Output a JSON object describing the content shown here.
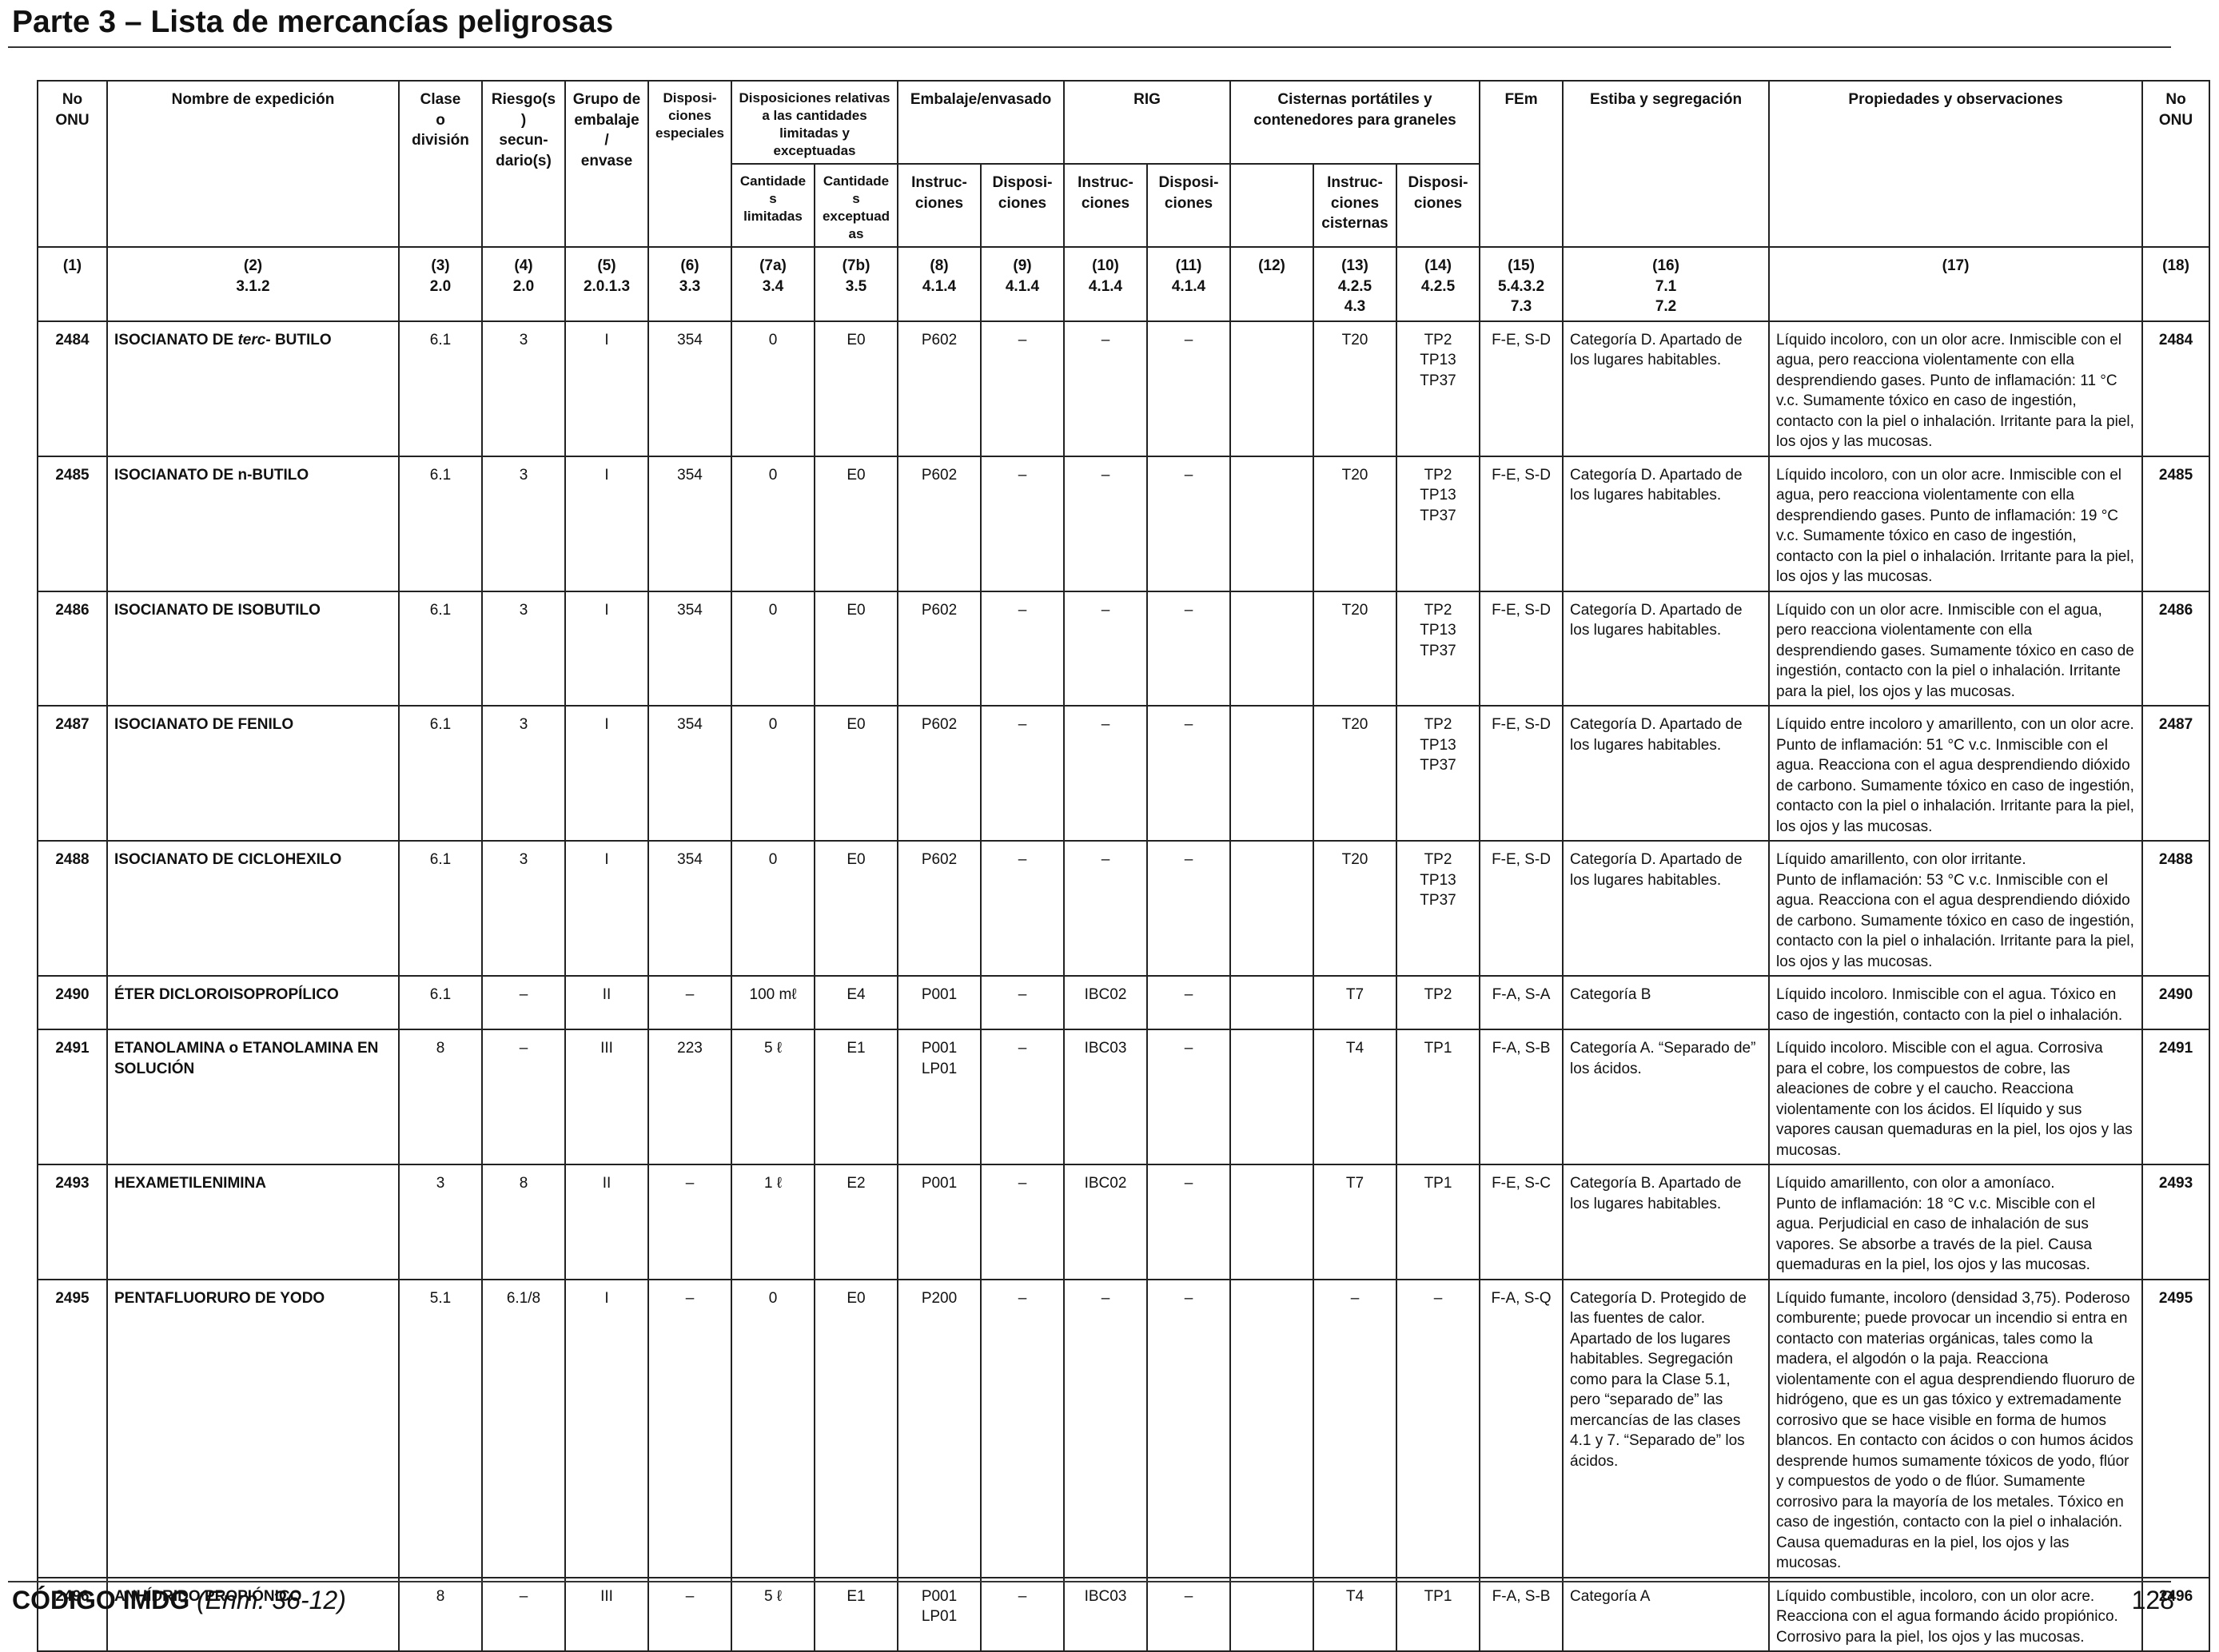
{
  "page_title": "Parte 3 – Lista de mercancías peligrosas",
  "header": {
    "un_no": "No\nONU",
    "name": "Nombre de expedición",
    "class": "Clase\no\ndivisión",
    "subrisk": "Riesgo(s)\nsecun-\ndario(s)",
    "pg": "Grupo de\nembalaje/\nenvase",
    "sp": "Disposi-\nciones\nespeciales",
    "limited_group": "Disposiciones relativas\na las cantidades\nlimitadas y exceptuadas",
    "limited_qty": "Cantidade\ns limitadas",
    "excepted_qty": "Cantidades\nexceptuadas",
    "packing_group": "Embalaje/envasado",
    "packing_instr": "Instruc-\nciones",
    "packing_prov": "Disposi-\nciones",
    "ibc_group": "RIG",
    "ibc_instr": "Instruc-\nciones",
    "ibc_prov": "Disposi-\nciones",
    "tank_group": "Cisternas portátiles y\ncontenedores para graneles",
    "tank_instr": "Instruc-\nciones\ncisternas",
    "tank_prov": "Disposi-\nciones",
    "ems": "FEm",
    "stowage": "Estiba y segregación",
    "properties": "Propiedades y observaciones",
    "un_no_right": "No\nONU"
  },
  "col_numbers": [
    "(1)",
    "(2)\n3.1.2",
    "(3)\n2.0",
    "(4)\n2.0",
    "(5)\n2.0.1.3",
    "(6)\n3.3",
    "(7a)\n3.4",
    "(7b)\n3.5",
    "(8)\n4.1.4",
    "(9)\n4.1.4",
    "(10)\n4.1.4",
    "(11)\n4.1.4",
    "(12)",
    "(13)\n4.2.5\n4.3",
    "(14)\n4.2.5",
    "(15)\n5.4.3.2\n7.3",
    "(16)\n7.1\n7.2",
    "(17)",
    "(18)"
  ],
  "rows": [
    {
      "un": "2484",
      "name_pre": "ISOCIANATO DE ",
      "name_it": "terc",
      "name_post": "- BUTILO",
      "cls": "6.1",
      "sub": "3",
      "pg": "I",
      "sp": "354",
      "lq": "0",
      "eq": "E0",
      "pi": "P602",
      "pp": "–",
      "ibc": "–",
      "ibcp": "–",
      "c12": "",
      "tank": "T20",
      "tp": "TP2\nTP13\nTP37",
      "ems": "F-E, S-D",
      "stow": "Categoría D. Apartado de los lugares habitables.",
      "props": "Líquido incoloro, con un olor acre. Inmiscible con el agua, pero reacciona violentamente con ella desprendiendo gases. Punto de inflamación: 11 °C v.c. Sumamente tóxico en caso de ingestión, contacto con la piel o inhalación. Irritante para la piel, los ojos y las mucosas."
    },
    {
      "un": "2485",
      "name_pre": "ISOCIANATO DE n-BUTILO",
      "name_it": "",
      "name_post": "",
      "cls": "6.1",
      "sub": "3",
      "pg": "I",
      "sp": "354",
      "lq": "0",
      "eq": "E0",
      "pi": "P602",
      "pp": "–",
      "ibc": "–",
      "ibcp": "–",
      "c12": "",
      "tank": "T20",
      "tp": "TP2\nTP13\nTP37",
      "ems": "F-E, S-D",
      "stow": "Categoría D. Apartado de los lugares habitables.",
      "props": "Líquido incoloro, con un olor acre. Inmiscible con el agua, pero reacciona violentamente con ella desprendiendo gases. Punto de inflamación: 19 °C v.c. Sumamente tóxico en caso de ingestión, contacto con la piel o inhalación. Irritante para la piel, los ojos y las mucosas."
    },
    {
      "un": "2486",
      "name_pre": "ISOCIANATO DE ISOBUTILO",
      "name_it": "",
      "name_post": "",
      "cls": "6.1",
      "sub": "3",
      "pg": "I",
      "sp": "354",
      "lq": "0",
      "eq": "E0",
      "pi": "P602",
      "pp": "–",
      "ibc": "–",
      "ibcp": "–",
      "c12": "",
      "tank": "T20",
      "tp": "TP2\nTP13\nTP37",
      "ems": "F-E, S-D",
      "stow": "Categoría D. Apartado de los lugares habitables.",
      "props": "Líquido con un olor acre. Inmiscible con el agua, pero reacciona violentamente con ella desprendiendo gases. Sumamente tóxico en caso de ingestión, contacto con la piel o inhalación. Irritante para la piel, los ojos y las mucosas."
    },
    {
      "un": "2487",
      "name_pre": "ISOCIANATO DE FENILO",
      "name_it": "",
      "name_post": "",
      "cls": "6.1",
      "sub": "3",
      "pg": "I",
      "sp": "354",
      "lq": "0",
      "eq": "E0",
      "pi": "P602",
      "pp": "–",
      "ibc": "–",
      "ibcp": "–",
      "c12": "",
      "tank": "T20",
      "tp": "TP2\nTP13\nTP37",
      "ems": "F-E, S-D",
      "stow": "Categoría D. Apartado de los lugares habitables.",
      "props": "Líquido entre incoloro y amarillento, con un olor acre. Punto de inflamación: 51 °C v.c. Inmiscible con el agua. Reacciona con el agua desprendiendo dióxido de carbono. Sumamente tóxico en caso de ingestión, contacto con la piel o inhalación. Irritante para la piel, los ojos y las mucosas."
    },
    {
      "un": "2488",
      "name_pre": "ISOCIANATO DE CICLOHEXILO",
      "name_it": "",
      "name_post": "",
      "cls": "6.1",
      "sub": "3",
      "pg": "I",
      "sp": "354",
      "lq": "0",
      "eq": "E0",
      "pi": "P602",
      "pp": "–",
      "ibc": "–",
      "ibcp": "–",
      "c12": "",
      "tank": "T20",
      "tp": "TP2\nTP13\nTP37",
      "ems": "F-E, S-D",
      "stow": "Categoría D. Apartado de los lugares habitables.",
      "props": "Líquido amarillento, con olor irritante.\nPunto de inflamación: 53 °C v.c. Inmiscible con el agua. Reacciona con el agua desprendiendo dióxido de carbono. Sumamente tóxico en caso de ingestión, contacto con la piel o inhalación. Irritante para la piel, los ojos y las mucosas."
    },
    {
      "un": "2490",
      "name_pre": "ÉTER DICLOROISOPROPÍLICO",
      "name_it": "",
      "name_post": "",
      "cls": "6.1",
      "sub": "–",
      "pg": "II",
      "sp": "–",
      "lq": "100 mℓ",
      "eq": "E4",
      "pi": "P001",
      "pp": "–",
      "ibc": "IBC02",
      "ibcp": "–",
      "c12": "",
      "tank": "T7",
      "tp": "TP2",
      "ems": "F-A, S-A",
      "stow": "Categoría B",
      "props": "Líquido incoloro. Inmiscible con el agua. Tóxico en caso de ingestión, contacto con la piel o inhalación."
    },
    {
      "un": "2491",
      "name_pre": "ETANOLAMINA o ETANOLAMINA EN SOLUCIÓN",
      "name_it": "",
      "name_post": "",
      "cls": "8",
      "sub": "–",
      "pg": "III",
      "sp": "223",
      "lq": "5 ℓ",
      "eq": "E1",
      "pi": "P001\nLP01",
      "pp": "–",
      "ibc": "IBC03",
      "ibcp": "–",
      "c12": "",
      "tank": "T4",
      "tp": "TP1",
      "ems": "F-A, S-B",
      "stow": "Categoría A. “Separado de” los ácidos.",
      "props": "Líquido incoloro. Miscible con el agua. Corrosiva para el cobre, los compuestos de cobre, las aleaciones de cobre y el caucho. Reacciona violentamente con los ácidos. El líquido y sus vapores causan quemaduras en la piel, los ojos y las mucosas."
    },
    {
      "un": "2493",
      "name_pre": "HEXAMETILENIMINA",
      "name_it": "",
      "name_post": "",
      "cls": "3",
      "sub": "8",
      "pg": "II",
      "sp": "–",
      "lq": "1 ℓ",
      "eq": "E2",
      "pi": "P001",
      "pp": "–",
      "ibc": "IBC02",
      "ibcp": "–",
      "c12": "",
      "tank": "T7",
      "tp": "TP1",
      "ems": "F-E, S-C",
      "stow": "Categoría B. Apartado de los lugares habitables.",
      "props": "Líquido amarillento, con olor a amoníaco.\nPunto de inflamación: 18 °C v.c. Miscible con el agua. Perjudicial en caso de inhalación de sus vapores. Se absorbe a través de la piel. Causa quemaduras en la piel, los ojos y las mucosas."
    },
    {
      "un": "2495",
      "name_pre": "PENTAFLUORURO DE YODO",
      "name_it": "",
      "name_post": "",
      "cls": "5.1",
      "sub": "6.1/8",
      "pg": "I",
      "sp": "–",
      "lq": "0",
      "eq": "E0",
      "pi": "P200",
      "pp": "–",
      "ibc": "–",
      "ibcp": "–",
      "c12": "",
      "tank": "–",
      "tp": "–",
      "ems": "F-A, S-Q",
      "stow": "Categoría D. Protegido de las fuentes de calor. Apartado de los lugares habitables. Segregación como para la Clase 5.1, pero “separado de” las mercancías de las clases 4.1 y 7. “Separado de” los ácidos.",
      "props": "Líquido fumante, incoloro (densidad 3,75). Poderoso comburente; puede provocar un incendio si entra en contacto con materias orgánicas, tales como la madera, el algodón o la paja. Reacciona violentamente con el agua desprendiendo fluoruro de hidrógeno, que es un gas tóxico y extremadamente corrosivo que se hace visible en forma de humos blancos. En contacto con ácidos o con humos ácidos desprende humos sumamente tóxicos de yodo, flúor y compuestos de yodo o de flúor. Sumamente corrosivo para la mayoría de los metales. Tóxico en caso de ingestión, contacto con la piel o inhalación. Causa quemaduras en la piel, los ojos y las mucosas."
    },
    {
      "un": "2496",
      "name_pre": "ANHÍDRIDO PROPIÓNICO",
      "name_it": "",
      "name_post": "",
      "cls": "8",
      "sub": "–",
      "pg": "III",
      "sp": "–",
      "lq": "5 ℓ",
      "eq": "E1",
      "pi": "P001\nLP01",
      "pp": "–",
      "ibc": "IBC03",
      "ibcp": "–",
      "c12": "",
      "tank": "T4",
      "tp": "TP1",
      "ems": "F-A, S-B",
      "stow": "Categoría A",
      "props": "Líquido combustible, incoloro, con un olor acre. Reacciona con el agua formando ácido propiónico. Corrosivo para la piel, los ojos y las mucosas."
    }
  ],
  "footer": {
    "code": "CÓDIGO IMDG",
    "amendment": "(Enm. 36-12)",
    "page_number": "128"
  }
}
